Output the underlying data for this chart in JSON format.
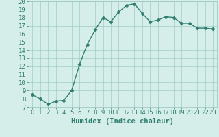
{
  "x": [
    0,
    1,
    2,
    3,
    4,
    5,
    6,
    7,
    8,
    9,
    10,
    11,
    12,
    13,
    14,
    15,
    16,
    17,
    18,
    19,
    20,
    21,
    22,
    23
  ],
  "y": [
    8.5,
    8.0,
    7.3,
    7.7,
    7.8,
    9.0,
    12.2,
    14.7,
    16.5,
    18.0,
    17.5,
    18.7,
    19.5,
    19.7,
    18.5,
    17.5,
    17.7,
    18.1,
    18.0,
    17.3,
    17.3,
    16.7,
    16.7,
    16.6
  ],
  "line_color": "#2e7d6e",
  "marker": "D",
  "markersize": 2.5,
  "linewidth": 1.0,
  "bg_color": "#d6eeea",
  "grid_color": "#a0ccc6",
  "xlabel": "Humidex (Indice chaleur)",
  "tick_fontsize": 6.5,
  "xlabel_fontsize": 7.5,
  "ylim": [
    7,
    20
  ],
  "xlim": [
    -0.5,
    23.5
  ],
  "yticks": [
    7,
    8,
    9,
    10,
    11,
    12,
    13,
    14,
    15,
    16,
    17,
    18,
    19,
    20
  ],
  "xticks": [
    0,
    1,
    2,
    3,
    4,
    5,
    6,
    7,
    8,
    9,
    10,
    11,
    12,
    13,
    14,
    15,
    16,
    17,
    18,
    19,
    20,
    21,
    22,
    23
  ]
}
